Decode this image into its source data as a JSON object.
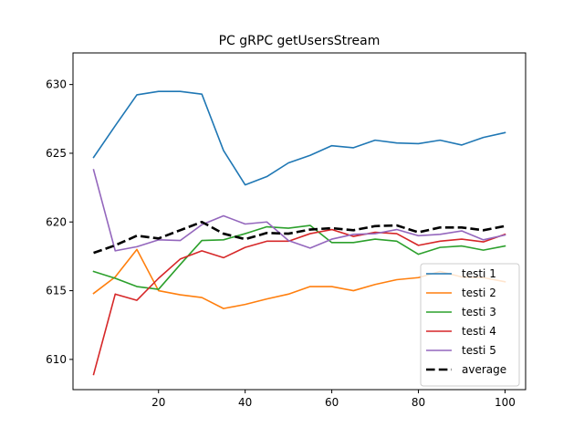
{
  "chart_data": {
    "type": "line",
    "title": "PC gRPC getUsersStream",
    "xlabel": "",
    "ylabel": "",
    "xlim": [
      0.25,
      104.75
    ],
    "ylim": [
      607.8,
      632.3
    ],
    "xticks": [
      20,
      40,
      60,
      80,
      100
    ],
    "yticks": [
      610,
      615,
      620,
      625,
      630
    ],
    "grid": false,
    "legend": "lower-right",
    "x": [
      5,
      10,
      15,
      20,
      25,
      30,
      35,
      40,
      45,
      50,
      55,
      60,
      65,
      70,
      75,
      80,
      85,
      90,
      95,
      100
    ],
    "series": [
      {
        "name": "testi 1",
        "color": "#1f77b4",
        "dashed": false,
        "values": [
          624.7,
          627.0,
          629.25,
          629.5,
          629.5,
          629.3,
          625.2,
          622.7,
          623.3,
          624.3,
          624.85,
          625.55,
          625.4,
          625.95,
          625.75,
          625.7,
          625.95,
          625.6,
          626.15,
          626.5
        ]
      },
      {
        "name": "testi 2",
        "color": "#ff7f0e",
        "dashed": false,
        "values": [
          614.8,
          616.0,
          618.0,
          615.0,
          614.7,
          614.5,
          613.7,
          614.0,
          614.4,
          614.75,
          615.3,
          615.3,
          615.0,
          615.45,
          615.8,
          615.95,
          616.4,
          616.0,
          615.95,
          615.65
        ]
      },
      {
        "name": "testi 3",
        "color": "#2ca02c",
        "dashed": false,
        "values": [
          616.4,
          615.9,
          615.3,
          615.1,
          616.9,
          618.65,
          618.7,
          619.15,
          619.65,
          619.55,
          619.75,
          618.5,
          618.5,
          618.75,
          618.6,
          617.65,
          618.15,
          618.25,
          617.95,
          618.25
        ]
      },
      {
        "name": "testi 4",
        "color": "#d62728",
        "dashed": false,
        "values": [
          608.9,
          614.75,
          614.3,
          615.9,
          617.3,
          617.9,
          617.4,
          618.15,
          618.6,
          618.6,
          619.15,
          619.45,
          618.95,
          619.25,
          619.15,
          618.3,
          618.6,
          618.75,
          618.55,
          619.1
        ]
      },
      {
        "name": "testi 5",
        "color": "#9467bd",
        "dashed": false,
        "values": [
          623.8,
          617.9,
          618.2,
          618.7,
          618.65,
          619.8,
          620.45,
          619.85,
          620.0,
          618.65,
          618.1,
          618.75,
          619.1,
          619.15,
          619.45,
          619.0,
          619.1,
          619.35,
          618.7,
          619.05
        ]
      },
      {
        "name": "average",
        "color": "#000000",
        "dashed": true,
        "values": [
          617.75,
          618.3,
          619.0,
          618.8,
          619.4,
          620.0,
          619.15,
          618.75,
          619.2,
          619.15,
          619.45,
          619.55,
          619.4,
          619.7,
          619.75,
          619.25,
          619.6,
          619.6,
          619.4,
          619.7
        ]
      }
    ]
  }
}
